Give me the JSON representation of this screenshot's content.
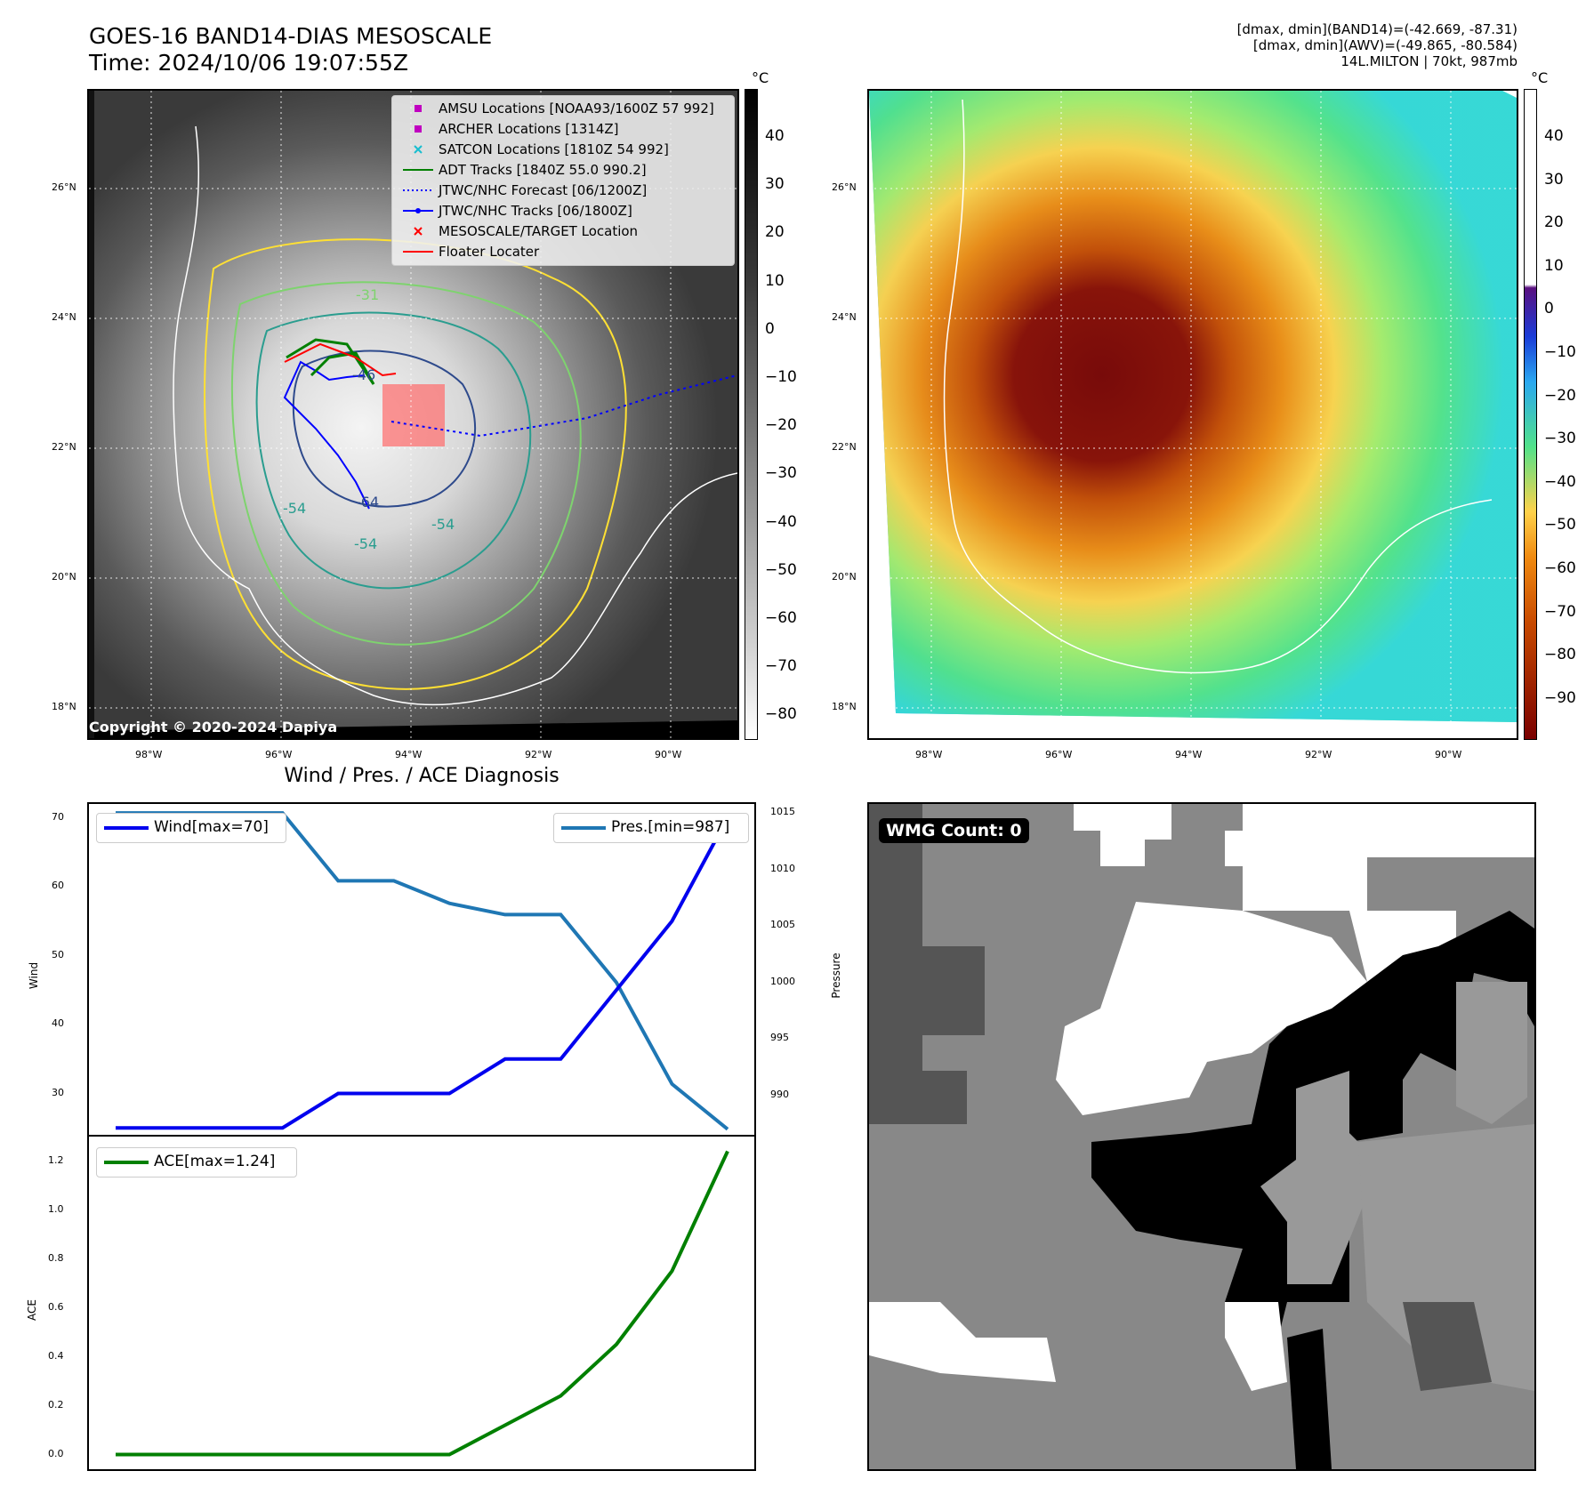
{
  "header": {
    "title_line1": "GOES-16 BAND14-DIAS MESOSCALE",
    "title_line2": "Time: 2024/10/06 19:07:55Z",
    "info_line1": "[dmax, dmin](BAND14)=(-42.669, -87.31)",
    "info_line2": "[dmax, dmin](AWV)=(-49.865, -80.584)",
    "info_line3": "14L.MILTON | 70kt, 987mb"
  },
  "map": {
    "lat_labels": [
      "26°N",
      "24°N",
      "22°N",
      "20°N",
      "18°N"
    ],
    "lon_labels": [
      "98°W",
      "96°W",
      "94°W",
      "92°W",
      "90°W"
    ],
    "copyright": "Copyright © 2020-2024 Dapiya",
    "contour_labels": [
      "-54",
      "-64",
      "-54",
      "-31",
      "-46",
      "-54"
    ],
    "colors": {
      "coast": "#ffffff",
      "contour_outer": "#ffe033",
      "contour_mid": "#7ed36e",
      "contour_inner": "#2a9d8f",
      "contour_core": "#2e4a8c"
    }
  },
  "legend": {
    "items": [
      {
        "label": "AMSU Locations [NOAA93/1600Z 57 992]",
        "icon": "square-marker",
        "color": "#c000c0"
      },
      {
        "label": "ARCHER Locations [1314Z]",
        "icon": "square-marker",
        "color": "#c000c0"
      },
      {
        "label": "SATCON Locations [1810Z 54 992]",
        "icon": "x-marker",
        "color": "#17becf"
      },
      {
        "label": "ADT Tracks [1840Z 55.0 990.2]",
        "icon": "solid-line",
        "color": "#008000"
      },
      {
        "label": "JTWC/NHC Forecast [06/1200Z]",
        "icon": "dotted-line",
        "color": "#0000ff"
      },
      {
        "label": "JTWC/NHC Tracks [06/1800Z]",
        "icon": "line-dot",
        "color": "#0000ff"
      },
      {
        "label": "MESOSCALE/TARGET Location",
        "icon": "x-marker",
        "color": "#ff0000"
      },
      {
        "label": "Floater Locater",
        "icon": "solid-line",
        "color": "#ff0000"
      }
    ]
  },
  "colorbars": {
    "unit": "°C",
    "ir_ticks": [
      "40",
      "30",
      "20",
      "10",
      "0",
      "−10",
      "−20",
      "−30",
      "−40",
      "−50",
      "−60",
      "−70",
      "−80"
    ],
    "awv_ticks": [
      "40",
      "30",
      "20",
      "10",
      "0",
      "−10",
      "−20",
      "−30",
      "−40",
      "−50",
      "−60",
      "−70",
      "−80",
      "−90"
    ]
  },
  "diagnosis": {
    "title": "Wind / Pres. / ACE Diagnosis",
    "wind_legend": "Wind[max=70]",
    "pres_legend": "Pres.[min=987]",
    "ace_legend": "ACE[max=1.24]",
    "wind_ylabel": "Wind",
    "pres_ylabel": "Pressure",
    "ace_ylabel": "ACE",
    "colors": {
      "wind": "#0000ee",
      "pres": "#1f77b4",
      "ace": "#008000"
    }
  },
  "wmg": {
    "label": "WMG Count: 0"
  },
  "chart_data": [
    {
      "type": "line",
      "title": "Wind / Pres. / ACE Diagnosis",
      "x": [
        0,
        1,
        2,
        3,
        4,
        5,
        6,
        7,
        8,
        9,
        10,
        11
      ],
      "series": [
        {
          "name": "Wind[max=70]",
          "axis": "left",
          "values": [
            25,
            25,
            25,
            25,
            30,
            30,
            30,
            35,
            35,
            45,
            55,
            70
          ]
        },
        {
          "name": "Pres.[min=987]",
          "axis": "right",
          "values": [
            1015,
            1015,
            1015,
            1015,
            1009,
            1009,
            1007,
            1006,
            1006,
            1000,
            991,
            987
          ]
        }
      ],
      "ylabel": "Wind",
      "ylim": [
        24,
        72
      ],
      "yticks": [
        30,
        40,
        50,
        60,
        70
      ],
      "y2label": "Pressure",
      "y2lim": [
        986.5,
        1015.8
      ],
      "y2ticks": [
        990,
        995,
        1000,
        1005,
        1010,
        1015
      ]
    },
    {
      "type": "line",
      "x": [
        0,
        1,
        2,
        3,
        4,
        5,
        6,
        7,
        8,
        9,
        10,
        11
      ],
      "series": [
        {
          "name": "ACE[max=1.24]",
          "values": [
            0,
            0,
            0,
            0,
            0,
            0,
            0,
            0.12,
            0.24,
            0.45,
            0.75,
            1.24
          ]
        }
      ],
      "ylabel": "ACE",
      "ylim": [
        -0.06,
        1.3
      ],
      "yticks": [
        "0.0",
        "0.2",
        "0.4",
        "0.6",
        "0.8",
        "1.0",
        "1.2"
      ]
    }
  ]
}
